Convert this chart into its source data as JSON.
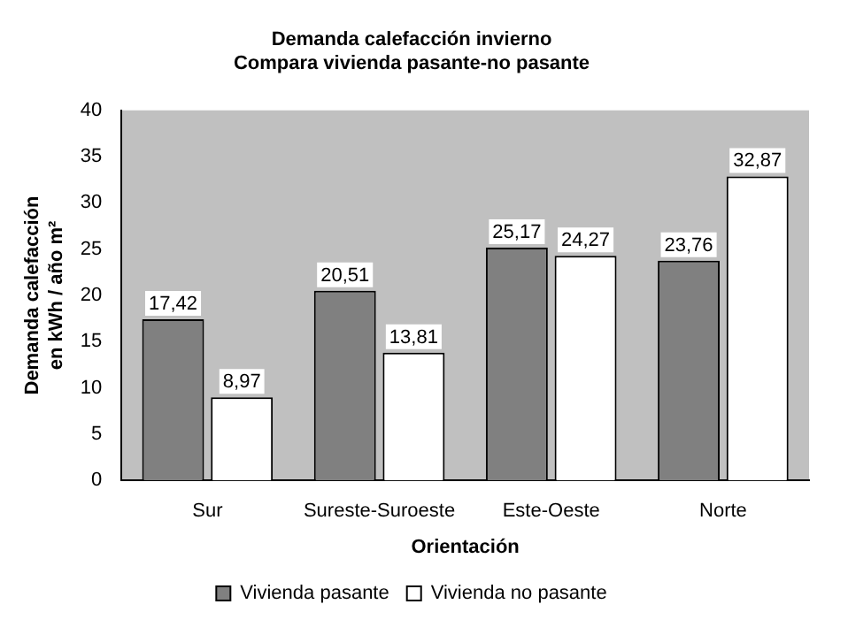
{
  "chart_data": {
    "type": "bar",
    "title": "Demanda calefacción invierno\nCompara vivienda pasante-no pasante",
    "xlabel": "Orientación",
    "ylabel": "Demanda calefacción\nen kWh / año m²",
    "categories": [
      "Sur",
      "Sureste-Suroeste",
      "Este-Oeste",
      "Norte"
    ],
    "series": [
      {
        "name": "Vivienda pasante",
        "color": "#808080",
        "values": [
          17.42,
          20.51,
          25.17,
          23.76
        ],
        "value_labels": [
          "17,42",
          "20,51",
          "25,17",
          "23,76"
        ]
      },
      {
        "name": "Vivienda no pasante",
        "color": "#ffffff",
        "values": [
          8.97,
          13.81,
          24.27,
          32.87
        ],
        "value_labels": [
          "8,97",
          "13,81",
          "24,27",
          "32,87"
        ]
      }
    ],
    "ylim": [
      0,
      40
    ],
    "yticks": [
      0,
      5,
      10,
      15,
      20,
      25,
      30,
      35,
      40
    ],
    "grid": false,
    "legend": "bottom"
  }
}
